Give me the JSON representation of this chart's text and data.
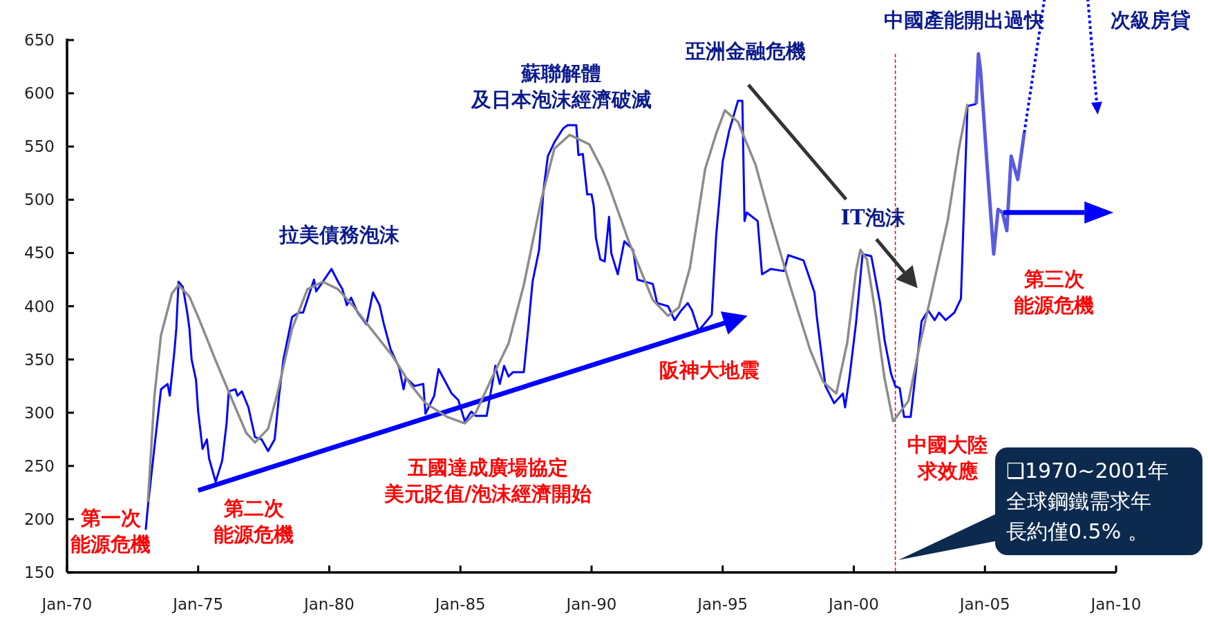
{
  "chart_data": {
    "type": "line",
    "xlim": [
      "1970-01",
      "2010-01"
    ],
    "xticks": [
      {
        "value": "1970-01",
        "label": "Jan-70"
      },
      {
        "value": "1975-01",
        "label": "Jan-75"
      },
      {
        "value": "1980-01",
        "label": "Jan-80"
      },
      {
        "value": "1985-01",
        "label": "Jan-85"
      },
      {
        "value": "1990-01",
        "label": "Jan-90"
      },
      {
        "value": "1995-01",
        "label": "Jan-95"
      },
      {
        "value": "2000-01",
        "label": "Jan-00"
      },
      {
        "value": "2005-01",
        "label": "Jan-05"
      },
      {
        "value": "2010-01",
        "label": "Jan-10"
      }
    ],
    "ylim": [
      150,
      650
    ],
    "yticks": [
      150,
      200,
      250,
      300,
      350,
      400,
      450,
      500,
      550,
      600,
      650
    ],
    "grid": false,
    "series": [
      {
        "color": "#0000ff",
        "x": [
          "1973-01",
          "1973-02",
          "1973-05",
          "1973-08",
          "1973-11",
          "1973-12",
          "1974-02",
          "1974-03",
          "1974-04",
          "1974-06",
          "1974-08",
          "1974-09",
          "1974-10",
          "1974-12",
          "1975-01",
          "1975-03",
          "1975-05",
          "1975-06",
          "1975-09",
          "1975-12",
          "1976-02",
          "1976-03",
          "1976-06",
          "1976-07",
          "1976-09",
          "1976-12",
          "1977-03",
          "1977-06",
          "1977-09",
          "1977-12",
          "1978-02",
          "1978-04",
          "1978-08",
          "1978-11",
          "1979-01",
          "1979-06",
          "1979-07",
          "1979-10",
          "1980-02",
          "1980-05",
          "1980-07",
          "1980-09",
          "1980-11",
          "1981-02",
          "1981-06",
          "1981-09",
          "1981-12",
          "1982-02",
          "1982-05",
          "1982-09",
          "1982-11",
          "1982-12",
          "1983-04",
          "1983-08",
          "1983-09",
          "1984-01",
          "1984-03",
          "1984-09",
          "1984-12",
          "1985-03",
          "1985-06",
          "1985-08",
          "1986-01",
          "1986-05",
          "1986-07",
          "1986-09",
          "1986-11",
          "1987-01",
          "1987-06",
          "1987-08",
          "1987-10",
          "1988-01",
          "1988-03",
          "1988-05",
          "1988-08",
          "1988-12",
          "1989-02",
          "1989-06",
          "1989-07",
          "1989-09",
          "1989-11",
          "1990-01",
          "1990-02",
          "1990-03",
          "1990-05",
          "1990-07",
          "1990-09",
          "1990-10",
          "1991-01",
          "1991-04",
          "1991-08",
          "1991-10",
          "1992-05",
          "1992-07",
          "1992-12",
          "1993-03",
          "1993-06",
          "1993-09",
          "1993-11",
          "1994-02",
          "1994-08",
          "1994-10",
          "1995-01",
          "1995-04",
          "1995-08",
          "1995-10",
          "1995-11",
          "1995-12",
          "1996-05",
          "1996-07",
          "1996-11",
          "1997-05",
          "1997-07",
          "1998-02",
          "1998-07",
          "1998-08",
          "1998-12",
          "1999-04",
          "1999-08",
          "1999-09",
          "1999-11",
          "2000-02",
          "2000-05",
          "2000-09",
          "2001-01",
          "2001-03",
          "2001-06",
          "2001-08",
          "2001-10",
          "2001-12",
          "2002-03",
          "2002-08",
          "2002-11",
          "2003-02",
          "2003-04",
          "2003-07",
          "2003-11",
          "2004-02",
          "2004-05",
          "2004-09"
        ],
        "values": [
          190,
          212,
          268,
          322,
          327,
          316,
          355,
          379,
          423,
          418,
          394,
          379,
          350,
          331,
          301,
          266,
          275,
          257,
          235,
          255,
          290,
          320,
          322,
          316,
          320,
          305,
          277,
          275,
          264,
          275,
          316,
          350,
          390,
          394,
          394,
          425,
          414,
          423,
          435,
          423,
          416,
          401,
          408,
          394,
          383,
          413,
          401,
          383,
          360,
          342,
          322,
          333,
          325,
          327,
          299,
          316,
          341,
          318,
          312,
          292,
          301,
          297,
          297,
          344,
          327,
          344,
          334,
          338,
          338,
          379,
          423,
          453,
          509,
          541,
          554,
          567,
          570,
          570,
          542,
          543,
          505,
          505,
          494,
          464,
          444,
          442,
          484,
          450,
          430,
          461,
          453,
          425,
          421,
          403,
          400,
          387,
          396,
          403,
          396,
          377,
          392,
          466,
          536,
          565,
          593,
          593,
          480,
          488,
          480,
          430,
          435,
          433,
          448,
          443,
          413,
          391,
          325,
          309,
          318,
          305,
          333,
          384,
          449,
          447,
          403,
          369,
          337,
          325,
          323,
          296,
          296,
          386,
          396,
          387,
          394,
          387,
          394,
          407,
          588,
          590
        ]
      },
      {
        "color": "#5a5ae0",
        "x": [
          "2004-09",
          "2004-10",
          "2004-11",
          "2005-02",
          "2005-05",
          "2005-07",
          "2005-09",
          "2005-11",
          "2006-01",
          "2006-04",
          "2006-07"
        ],
        "values": [
          590,
          637,
          621,
          532,
          449,
          491,
          488,
          471,
          541,
          519,
          563
        ]
      },
      {
        "color": "#0000ff",
        "x": [
          "1975-01",
          "1995-06"
        ],
        "values": [
          227,
          387
        ]
      },
      {
        "color": "#8c8c8c",
        "x": [
          "1973-02",
          "1973-05",
          "1973-08",
          "1974-01",
          "1974-04",
          "1974-09",
          "1975-01",
          "1975-09",
          "1976-06",
          "1976-11",
          "1977-03",
          "1977-09",
          "1978-01",
          "1978-08",
          "1979-03",
          "1979-10",
          "1980-05",
          "1980-12",
          "1981-08",
          "1982-06",
          "1983-02",
          "1983-09",
          "1984-07",
          "1985-03",
          "1985-08",
          "1986-03",
          "1986-11",
          "1987-06",
          "1988-02",
          "1988-08",
          "1989-03",
          "1989-12",
          "1990-06",
          "1990-09",
          "1991-06",
          "1992-05",
          "1992-12",
          "1993-05",
          "1993-10",
          "1994-05",
          "1994-10",
          "1995-02",
          "1995-08",
          "1996-04",
          "1996-11",
          "1997-08",
          "1998-05",
          "1998-11",
          "1999-05",
          "1999-10",
          "2000-02",
          "2000-04",
          "2000-07",
          "2000-11",
          "2001-03",
          "2001-07",
          "2002-02",
          "2002-07",
          "2002-12",
          "2003-08",
          "2004-01",
          "2004-05"
        ],
        "values": [
          216,
          316,
          373,
          412,
          420,
          409,
          390,
          349,
          305,
          281,
          272,
          285,
          316,
          379,
          416,
          423,
          416,
          400,
          379,
          353,
          327,
          309,
          296,
          290,
          300,
          331,
          365,
          420,
          500,
          548,
          561,
          552,
          528,
          513,
          461,
          406,
          391,
          399,
          436,
          529,
          562,
          584,
          573,
          533,
          481,
          418,
          359,
          329,
          318,
          366,
          433,
          453,
          444,
          392,
          333,
          292,
          311,
          362,
          407,
          481,
          547,
          590
        ]
      }
    ],
    "ref_lines": [
      {
        "axis": "x",
        "value": "2001-08",
        "color": "#ff0000",
        "line_style": "dashed"
      }
    ],
    "annotations": [
      "第一次能源危機",
      "第二次能源危機",
      "拉美債務泡沫",
      "五國達成廣場協定美元貶值/泡沫經濟開始",
      "蘇聯解體及日本泡沫經濟破滅",
      "阪神大地震",
      "亞洲金融危機",
      "IT泡沫",
      "中國大陸求效應",
      "第三次能源危機",
      {
        "text": "中國產能開出過快",
        "x": "2006-07",
        "y": 563
      },
      "次級房貸",
      "❑1970~2001年全球鋼鐵需求年長約僅0.5% 。"
    ]
  }
}
